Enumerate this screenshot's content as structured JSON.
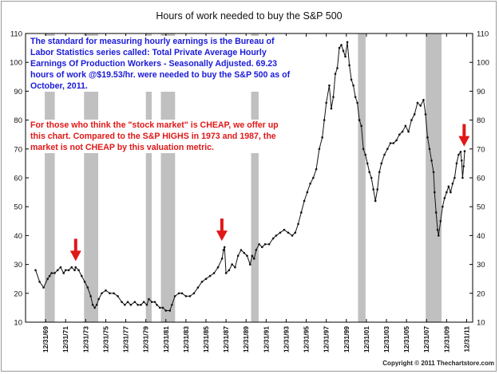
{
  "chart_data": {
    "type": "line",
    "title": "Hours of work needed to buy the S&P 500",
    "xlabel": "",
    "ylabel": "",
    "ylim": [
      10,
      110
    ],
    "y_ticks": [
      10,
      20,
      30,
      40,
      50,
      60,
      70,
      80,
      90,
      100,
      110
    ],
    "x_range": [
      1968.0,
      2012.6
    ],
    "x_tick_labels": [
      "12/31/69",
      "12/31/71",
      "12/31/73",
      "12/31/75",
      "12/31/77",
      "12/31/79",
      "12/31/81",
      "12/31/83",
      "12/31/85",
      "12/31/87",
      "12/31/89",
      "12/31/91",
      "12/31/93",
      "12/31/95",
      "12/31/97",
      "12/31/99",
      "12/31/01",
      "12/31/03",
      "12/31/05",
      "12/31/07",
      "12/31/09",
      "12/31/11"
    ],
    "grid": false,
    "line_color": "#111111",
    "recession_color": "#c0c0c0",
    "arrow_color": "#e01818",
    "recessions": [
      {
        "start": "12/1969",
        "end": "11/1970"
      },
      {
        "start": "11/1973",
        "end": "3/1975"
      },
      {
        "start": "1/1980",
        "end": "7/1980"
      },
      {
        "start": "7/1981",
        "end": "11/1982"
      },
      {
        "start": "7/1990",
        "end": "3/1991"
      },
      {
        "start": "3/2001",
        "end": "11/2001"
      },
      {
        "start": "12/2007",
        "end": "6/2009"
      }
    ],
    "highlighted_peaks": [
      {
        "date": "1/1973",
        "value": 29.5
      },
      {
        "date": "8/1987",
        "value": 36.5
      },
      {
        "date": "10/2011",
        "value": 69.23
      }
    ],
    "series": [
      {
        "x": [
          1969.0,
          1969.4,
          1969.8,
          1970.2,
          1970.4,
          1970.6,
          1970.9,
          1971.2,
          1971.5,
          1971.8,
          1972.0,
          1972.3,
          1972.6,
          1972.9,
          1973.0,
          1973.3,
          1973.6,
          1973.9,
          1974.2,
          1974.5,
          1974.7,
          1974.9,
          1975.1,
          1975.3,
          1975.6,
          1976.0,
          1976.4,
          1976.8,
          1977.2,
          1977.6,
          1977.9,
          1978.2,
          1978.5,
          1978.9,
          1979.2,
          1979.5,
          1979.8,
          1980.1,
          1980.3,
          1980.6,
          1980.9,
          1981.1,
          1981.4,
          1981.7,
          1982.0,
          1982.4,
          1982.6,
          1982.9,
          1983.3,
          1983.6,
          1984.0,
          1984.4,
          1984.8,
          1985.2,
          1985.6,
          1986.0,
          1986.4,
          1986.8,
          1987.2,
          1987.6,
          1987.75,
          1987.85,
          1988.0,
          1988.3,
          1988.6,
          1988.9,
          1989.2,
          1989.5,
          1989.8,
          1990.1,
          1990.4,
          1990.6,
          1990.8,
          1991.0,
          1991.3,
          1991.6,
          1991.9,
          1992.3,
          1992.7,
          1993.0,
          1993.4,
          1993.8,
          1994.2,
          1994.6,
          1994.9,
          1995.2,
          1995.5,
          1995.8,
          1996.1,
          1996.4,
          1996.7,
          1997.0,
          1997.3,
          1997.6,
          1997.8,
          1998.0,
          1998.3,
          1998.5,
          1998.7,
          1998.9,
          1999.1,
          1999.3,
          1999.5,
          1999.7,
          1999.9,
          2000.1,
          2000.3,
          2000.5,
          2000.7,
          2000.9,
          2001.1,
          2001.3,
          2001.5,
          2001.7,
          2001.9,
          2002.1,
          2002.3,
          2002.5,
          2002.7,
          2002.9,
          2003.1,
          2003.3,
          2003.5,
          2003.8,
          2004.1,
          2004.4,
          2004.7,
          2005.0,
          2005.3,
          2005.6,
          2005.9,
          2006.2,
          2006.5,
          2006.8,
          2007.1,
          2007.4,
          2007.7,
          2007.9,
          2008.1,
          2008.3,
          2008.5,
          2008.7,
          2008.8,
          2008.95,
          2009.1,
          2009.2,
          2009.4,
          2009.6,
          2009.8,
          2010.0,
          2010.2,
          2010.4,
          2010.6,
          2010.8,
          2011.0,
          2011.2,
          2011.4,
          2011.5,
          2011.6,
          2011.7,
          2011.8
        ],
        "values": [
          28,
          24,
          22,
          25,
          26,
          27,
          27,
          28,
          29,
          27,
          28,
          28,
          29,
          28,
          29,
          28,
          26,
          24,
          22,
          19,
          16,
          15,
          16,
          18,
          20,
          21,
          20,
          20,
          19,
          17,
          16,
          17,
          16,
          17,
          16,
          16,
          17,
          16,
          18,
          17,
          17,
          16,
          15,
          15,
          14,
          14,
          16,
          19,
          20,
          20,
          19,
          19,
          20,
          22,
          24,
          25,
          26,
          27,
          29,
          32,
          35,
          36,
          27,
          28,
          30,
          29,
          33,
          35,
          34,
          33,
          30,
          33,
          32,
          35,
          37,
          36,
          37,
          37,
          39,
          40,
          41,
          42,
          41,
          40,
          41,
          44,
          48,
          52,
          55,
          58,
          60,
          63,
          70,
          74,
          80,
          86,
          92,
          84,
          88,
          96,
          98,
          105,
          106,
          104,
          102,
          107,
          99,
          94,
          92,
          88,
          86,
          80,
          78,
          70,
          68,
          65,
          62,
          60,
          56,
          52,
          56,
          62,
          65,
          68,
          70,
          72,
          72,
          73,
          75,
          76,
          78,
          76,
          80,
          82,
          86,
          85,
          87,
          82,
          74,
          70,
          66,
          62,
          55,
          48,
          42,
          40,
          45,
          50,
          53,
          55,
          57,
          55,
          58,
          60,
          65,
          68,
          69,
          66,
          60,
          64,
          69.23
        ]
      }
    ],
    "annotations": [
      "The standard for measuring hourly earnings is the Bureau of Labor Statistics series called:  Total Private Average Hourly Earnings Of Production Workers - Seasonally Adjusted.  69.23 hours of work @$19.53/hr. were needed to buy the S&P 500 as of October, 2011.",
      "For those who think the \"stock market\" is CHEAP, we offer up this chart.  Compared to the S&P HIGHS in 1973 and 1987, the market is not CHEAP by this valuation metric."
    ],
    "copyright": "Copyright © 2011 Thechartstore.com"
  }
}
